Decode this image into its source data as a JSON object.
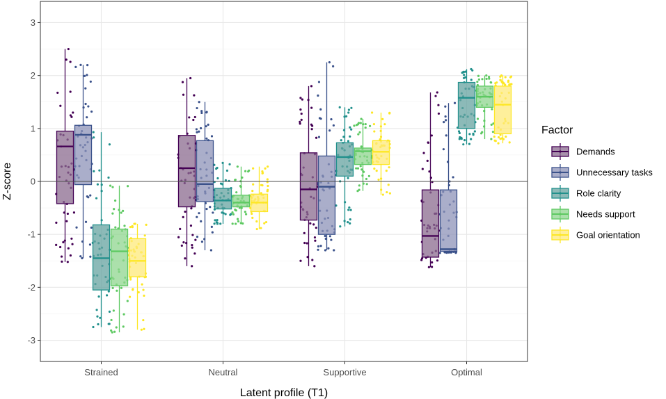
{
  "chart_data": {
    "type": "box",
    "title": "",
    "xlabel": "Latent profile (T1)",
    "ylabel": "Z-score",
    "ylim": [
      -3.4,
      3.4
    ],
    "yticks": [
      -3,
      -2,
      -1,
      0,
      1,
      2,
      3
    ],
    "reference_line": 0,
    "grid": true,
    "legend_title": "Factor",
    "legend_position": "right",
    "categories": [
      "Strained",
      "Neutral",
      "Supportive",
      "Optimal"
    ],
    "series": [
      {
        "name": "Demands",
        "fill": "#8b6b8f",
        "stroke": "#440154",
        "boxes": [
          {
            "whisker_low": -1.52,
            "q1": -0.42,
            "median": 0.66,
            "q3": 0.95,
            "whisker_high": 2.5
          },
          {
            "whisker_low": -1.6,
            "q1": -0.48,
            "median": 0.25,
            "q3": 0.87,
            "whisker_high": 1.95
          },
          {
            "whisker_low": -1.6,
            "q1": -0.73,
            "median": -0.15,
            "q3": 0.54,
            "whisker_high": 1.8
          },
          {
            "whisker_low": -1.62,
            "q1": -1.43,
            "median": -1.03,
            "q3": -0.16,
            "whisker_high": 1.68
          }
        ]
      },
      {
        "name": "Unnecessary tasks",
        "fill": "#8e93b8",
        "stroke": "#3b528b",
        "boxes": [
          {
            "whisker_low": -1.45,
            "q1": -0.06,
            "median": 0.88,
            "q3": 1.06,
            "whisker_high": 2.2
          },
          {
            "whisker_low": -1.3,
            "q1": -0.38,
            "median": -0.05,
            "q3": 0.77,
            "whisker_high": 1.5
          },
          {
            "whisker_low": -1.3,
            "q1": -1.0,
            "median": -0.1,
            "q3": 0.48,
            "whisker_high": 2.25
          },
          {
            "whisker_low": -1.35,
            "q1": -1.32,
            "median": -1.28,
            "q3": -0.16,
            "whisker_high": 1.48
          }
        ]
      },
      {
        "name": "Role clarity",
        "fill": "#66a3a0",
        "stroke": "#21908c",
        "boxes": [
          {
            "whisker_low": -2.75,
            "q1": -2.05,
            "median": -1.45,
            "q3": -0.82,
            "whisker_high": 0.93
          },
          {
            "whisker_low": -0.8,
            "q1": -0.52,
            "median": -0.36,
            "q3": -0.13,
            "whisker_high": 0.35
          },
          {
            "whisker_low": -0.85,
            "q1": 0.1,
            "median": 0.46,
            "q3": 0.73,
            "whisker_high": 1.4
          },
          {
            "whisker_low": 0.7,
            "q1": 1.0,
            "median": 1.58,
            "q3": 1.87,
            "whisker_high": 2.12
          }
        ]
      },
      {
        "name": "Needs support",
        "fill": "#8fd68f",
        "stroke": "#5ec962",
        "boxes": [
          {
            "whisker_low": -2.85,
            "q1": -1.97,
            "median": -1.32,
            "q3": -0.9,
            "whisker_high": -0.08
          },
          {
            "whisker_low": -0.8,
            "q1": -0.48,
            "median": -0.4,
            "q3": -0.26,
            "whisker_high": 0.28
          },
          {
            "whisker_low": -0.18,
            "q1": 0.32,
            "median": 0.57,
            "q3": 0.63,
            "whisker_high": 1.18
          },
          {
            "whisker_low": 0.8,
            "q1": 1.4,
            "median": 1.6,
            "q3": 1.8,
            "whisker_high": 2.0
          }
        ]
      },
      {
        "name": "Goal orientation",
        "fill": "#fde97a",
        "stroke": "#fde725",
        "boxes": [
          {
            "whisker_low": -2.8,
            "q1": -1.8,
            "median": -1.5,
            "q3": -1.08,
            "whisker_high": -0.8
          },
          {
            "whisker_low": -0.9,
            "q1": -0.57,
            "median": -0.4,
            "q3": -0.24,
            "whisker_high": 0.28
          },
          {
            "whisker_low": -0.25,
            "q1": 0.32,
            "median": 0.56,
            "q3": 0.77,
            "whisker_high": 1.3
          },
          {
            "whisker_low": 0.72,
            "q1": 0.9,
            "median": 1.45,
            "q3": 1.8,
            "whisker_high": 2.0
          }
        ]
      }
    ]
  }
}
